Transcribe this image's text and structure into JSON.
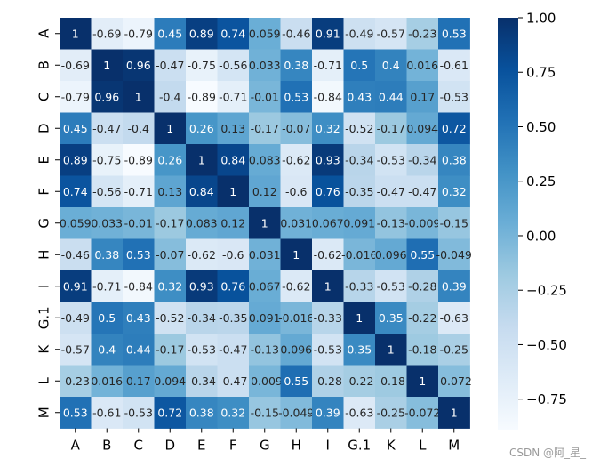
{
  "chart_data": {
    "type": "heatmap",
    "title": "",
    "xlabel": "",
    "ylabel": "",
    "row_labels": [
      "A",
      "B",
      "C",
      "D",
      "E",
      "F",
      "G",
      "H",
      "I",
      "G.1",
      "K",
      "L",
      "M"
    ],
    "col_labels": [
      "A",
      "B",
      "C",
      "D",
      "E",
      "F",
      "G",
      "H",
      "I",
      "G.1",
      "K",
      "L",
      "M"
    ],
    "values": [
      [
        1,
        -0.69,
        -0.79,
        0.45,
        0.89,
        0.74,
        0.059,
        -0.46,
        0.91,
        -0.49,
        -0.57,
        -0.23,
        0.53
      ],
      [
        -0.69,
        1,
        0.96,
        -0.47,
        -0.75,
        -0.56,
        0.033,
        0.38,
        -0.71,
        0.5,
        0.4,
        0.016,
        -0.61
      ],
      [
        -0.79,
        0.96,
        1,
        -0.4,
        -0.89,
        -0.71,
        -0.01,
        0.53,
        -0.84,
        0.43,
        0.44,
        0.17,
        -0.53
      ],
      [
        0.45,
        -0.47,
        -0.4,
        1,
        0.26,
        0.13,
        -0.17,
        -0.07,
        0.32,
        -0.52,
        -0.17,
        0.094,
        0.72
      ],
      [
        0.89,
        -0.75,
        -0.89,
        0.26,
        1,
        0.84,
        0.083,
        -0.62,
        0.93,
        -0.34,
        -0.53,
        -0.34,
        0.38
      ],
      [
        0.74,
        -0.56,
        -0.71,
        0.13,
        0.84,
        1,
        0.12,
        -0.6,
        0.76,
        -0.35,
        -0.47,
        -0.47,
        0.32
      ],
      [
        0.059,
        0.033,
        -0.01,
        -0.17,
        0.083,
        0.12,
        1,
        0.031,
        0.067,
        0.091,
        -0.13,
        -0.009,
        -0.15
      ],
      [
        -0.46,
        0.38,
        0.53,
        -0.07,
        -0.62,
        -0.6,
        0.031,
        1,
        -0.62,
        -0.016,
        0.096,
        0.55,
        -0.049
      ],
      [
        0.91,
        -0.71,
        -0.84,
        0.32,
        0.93,
        0.76,
        0.067,
        -0.62,
        1,
        -0.33,
        -0.53,
        -0.28,
        0.39
      ],
      [
        -0.49,
        0.5,
        0.43,
        -0.52,
        -0.34,
        -0.35,
        0.091,
        -0.016,
        -0.33,
        1,
        0.35,
        -0.22,
        -0.63
      ],
      [
        -0.57,
        0.4,
        0.44,
        -0.17,
        -0.53,
        -0.47,
        -0.13,
        0.096,
        -0.53,
        0.35,
        1,
        -0.18,
        -0.25
      ],
      [
        -0.23,
        0.016,
        0.17,
        0.094,
        -0.34,
        -0.47,
        -0.009,
        0.55,
        -0.28,
        -0.22,
        -0.18,
        1,
        -0.072
      ],
      [
        0.53,
        -0.61,
        -0.53,
        0.72,
        0.38,
        0.32,
        -0.15,
        -0.049,
        0.39,
        -0.63,
        -0.25,
        -0.072,
        1
      ]
    ],
    "colormap": "Blues",
    "colorbar": {
      "vmin": -0.89,
      "vmax": 1.0,
      "ticks": [
        1.0,
        0.75,
        0.5,
        0.25,
        0.0,
        -0.25,
        -0.5,
        -0.75
      ],
      "tick_labels": [
        "1.00",
        "0.75",
        "0.50",
        "0.25",
        "0.00",
        "−0.25",
        "−0.50",
        "−0.75"
      ]
    },
    "annotations": true
  },
  "watermark": "CSDN @阿_星_"
}
